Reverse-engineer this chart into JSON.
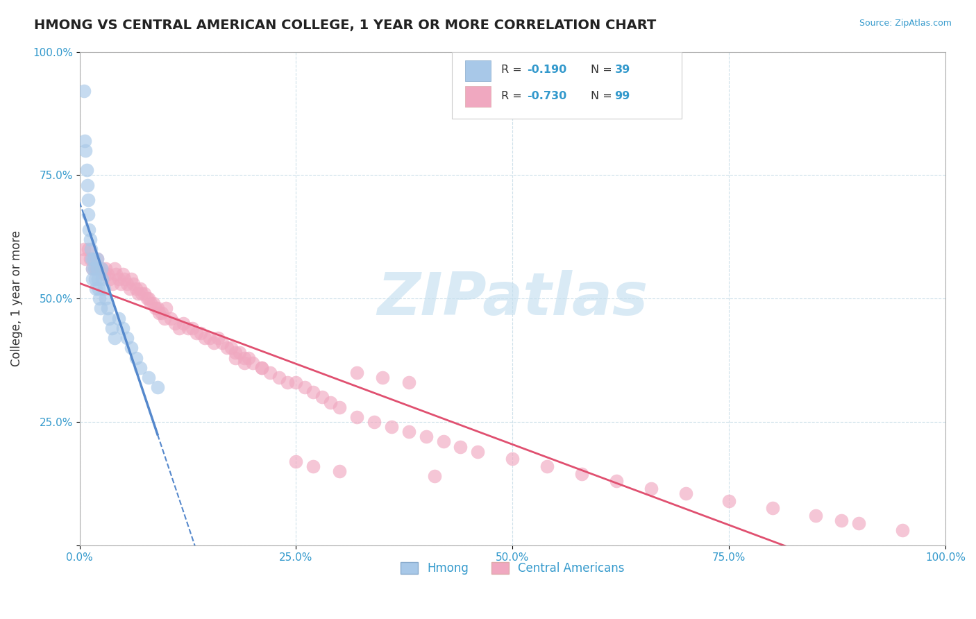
{
  "title": "HMONG VS CENTRAL AMERICAN COLLEGE, 1 YEAR OR MORE CORRELATION CHART",
  "source": "Source: ZipAtlas.com",
  "ylabel": "College, 1 year or more",
  "xlim": [
    0.0,
    1.0
  ],
  "ylim": [
    0.0,
    1.0
  ],
  "x_ticks": [
    0.0,
    0.25,
    0.5,
    0.75,
    1.0
  ],
  "y_ticks": [
    0.0,
    0.25,
    0.5,
    0.75,
    1.0
  ],
  "x_tick_labels": [
    "0.0%",
    "25.0%",
    "50.0%",
    "75.0%",
    "100.0%"
  ],
  "y_tick_labels": [
    "",
    "25.0%",
    "50.0%",
    "75.0%",
    "100.0%"
  ],
  "hmong_color": "#a8c8e8",
  "central_american_color": "#f0a8c0",
  "hmong_line_color": "#5588cc",
  "central_american_line_color": "#e05070",
  "hmong_R": -0.19,
  "hmong_N": 39,
  "central_american_R": -0.73,
  "central_american_N": 99,
  "hmong_x": [
    0.005,
    0.006,
    0.007,
    0.008,
    0.009,
    0.01,
    0.01,
    0.011,
    0.012,
    0.013,
    0.014,
    0.015,
    0.015,
    0.016,
    0.017,
    0.018,
    0.019,
    0.02,
    0.02,
    0.021,
    0.022,
    0.023,
    0.024,
    0.025,
    0.026,
    0.028,
    0.03,
    0.032,
    0.034,
    0.037,
    0.04,
    0.045,
    0.05,
    0.055,
    0.06,
    0.065,
    0.07,
    0.08,
    0.09
  ],
  "hmong_y": [
    0.92,
    0.82,
    0.8,
    0.76,
    0.73,
    0.7,
    0.67,
    0.64,
    0.62,
    0.6,
    0.58,
    0.56,
    0.54,
    0.58,
    0.56,
    0.54,
    0.52,
    0.58,
    0.56,
    0.54,
    0.52,
    0.5,
    0.48,
    0.56,
    0.54,
    0.52,
    0.5,
    0.48,
    0.46,
    0.44,
    0.42,
    0.46,
    0.44,
    0.42,
    0.4,
    0.38,
    0.36,
    0.34,
    0.32
  ],
  "ca_x": [
    0.005,
    0.007,
    0.01,
    0.012,
    0.015,
    0.018,
    0.02,
    0.022,
    0.025,
    0.028,
    0.03,
    0.032,
    0.035,
    0.038,
    0.04,
    0.042,
    0.045,
    0.048,
    0.05,
    0.052,
    0.055,
    0.058,
    0.06,
    0.062,
    0.065,
    0.068,
    0.07,
    0.072,
    0.075,
    0.078,
    0.08,
    0.082,
    0.085,
    0.088,
    0.09,
    0.092,
    0.095,
    0.098,
    0.1,
    0.105,
    0.11,
    0.115,
    0.12,
    0.125,
    0.13,
    0.135,
    0.14,
    0.145,
    0.15,
    0.155,
    0.16,
    0.165,
    0.17,
    0.175,
    0.18,
    0.185,
    0.19,
    0.195,
    0.2,
    0.21,
    0.22,
    0.23,
    0.24,
    0.25,
    0.26,
    0.27,
    0.28,
    0.29,
    0.3,
    0.32,
    0.34,
    0.36,
    0.38,
    0.4,
    0.42,
    0.44,
    0.46,
    0.5,
    0.54,
    0.58,
    0.62,
    0.66,
    0.7,
    0.75,
    0.8,
    0.85,
    0.88,
    0.9,
    0.95,
    0.18,
    0.19,
    0.21,
    0.25,
    0.27,
    0.3,
    0.32,
    0.35,
    0.38,
    0.41
  ],
  "ca_y": [
    0.6,
    0.58,
    0.6,
    0.58,
    0.56,
    0.56,
    0.58,
    0.56,
    0.56,
    0.55,
    0.56,
    0.55,
    0.54,
    0.53,
    0.56,
    0.55,
    0.54,
    0.53,
    0.55,
    0.54,
    0.53,
    0.52,
    0.54,
    0.53,
    0.52,
    0.51,
    0.52,
    0.51,
    0.51,
    0.5,
    0.5,
    0.49,
    0.49,
    0.48,
    0.48,
    0.47,
    0.47,
    0.46,
    0.48,
    0.46,
    0.45,
    0.44,
    0.45,
    0.44,
    0.44,
    0.43,
    0.43,
    0.42,
    0.42,
    0.41,
    0.42,
    0.41,
    0.4,
    0.4,
    0.39,
    0.39,
    0.38,
    0.38,
    0.37,
    0.36,
    0.35,
    0.34,
    0.33,
    0.33,
    0.32,
    0.31,
    0.3,
    0.29,
    0.28,
    0.26,
    0.25,
    0.24,
    0.23,
    0.22,
    0.21,
    0.2,
    0.19,
    0.175,
    0.16,
    0.145,
    0.13,
    0.115,
    0.105,
    0.09,
    0.075,
    0.06,
    0.05,
    0.045,
    0.03,
    0.38,
    0.37,
    0.36,
    0.17,
    0.16,
    0.15,
    0.35,
    0.34,
    0.33,
    0.14
  ],
  "watermark_text": "ZIPatlas",
  "watermark_color": "#c5dff0",
  "background_color": "#ffffff",
  "grid_color": "#c8dde8"
}
